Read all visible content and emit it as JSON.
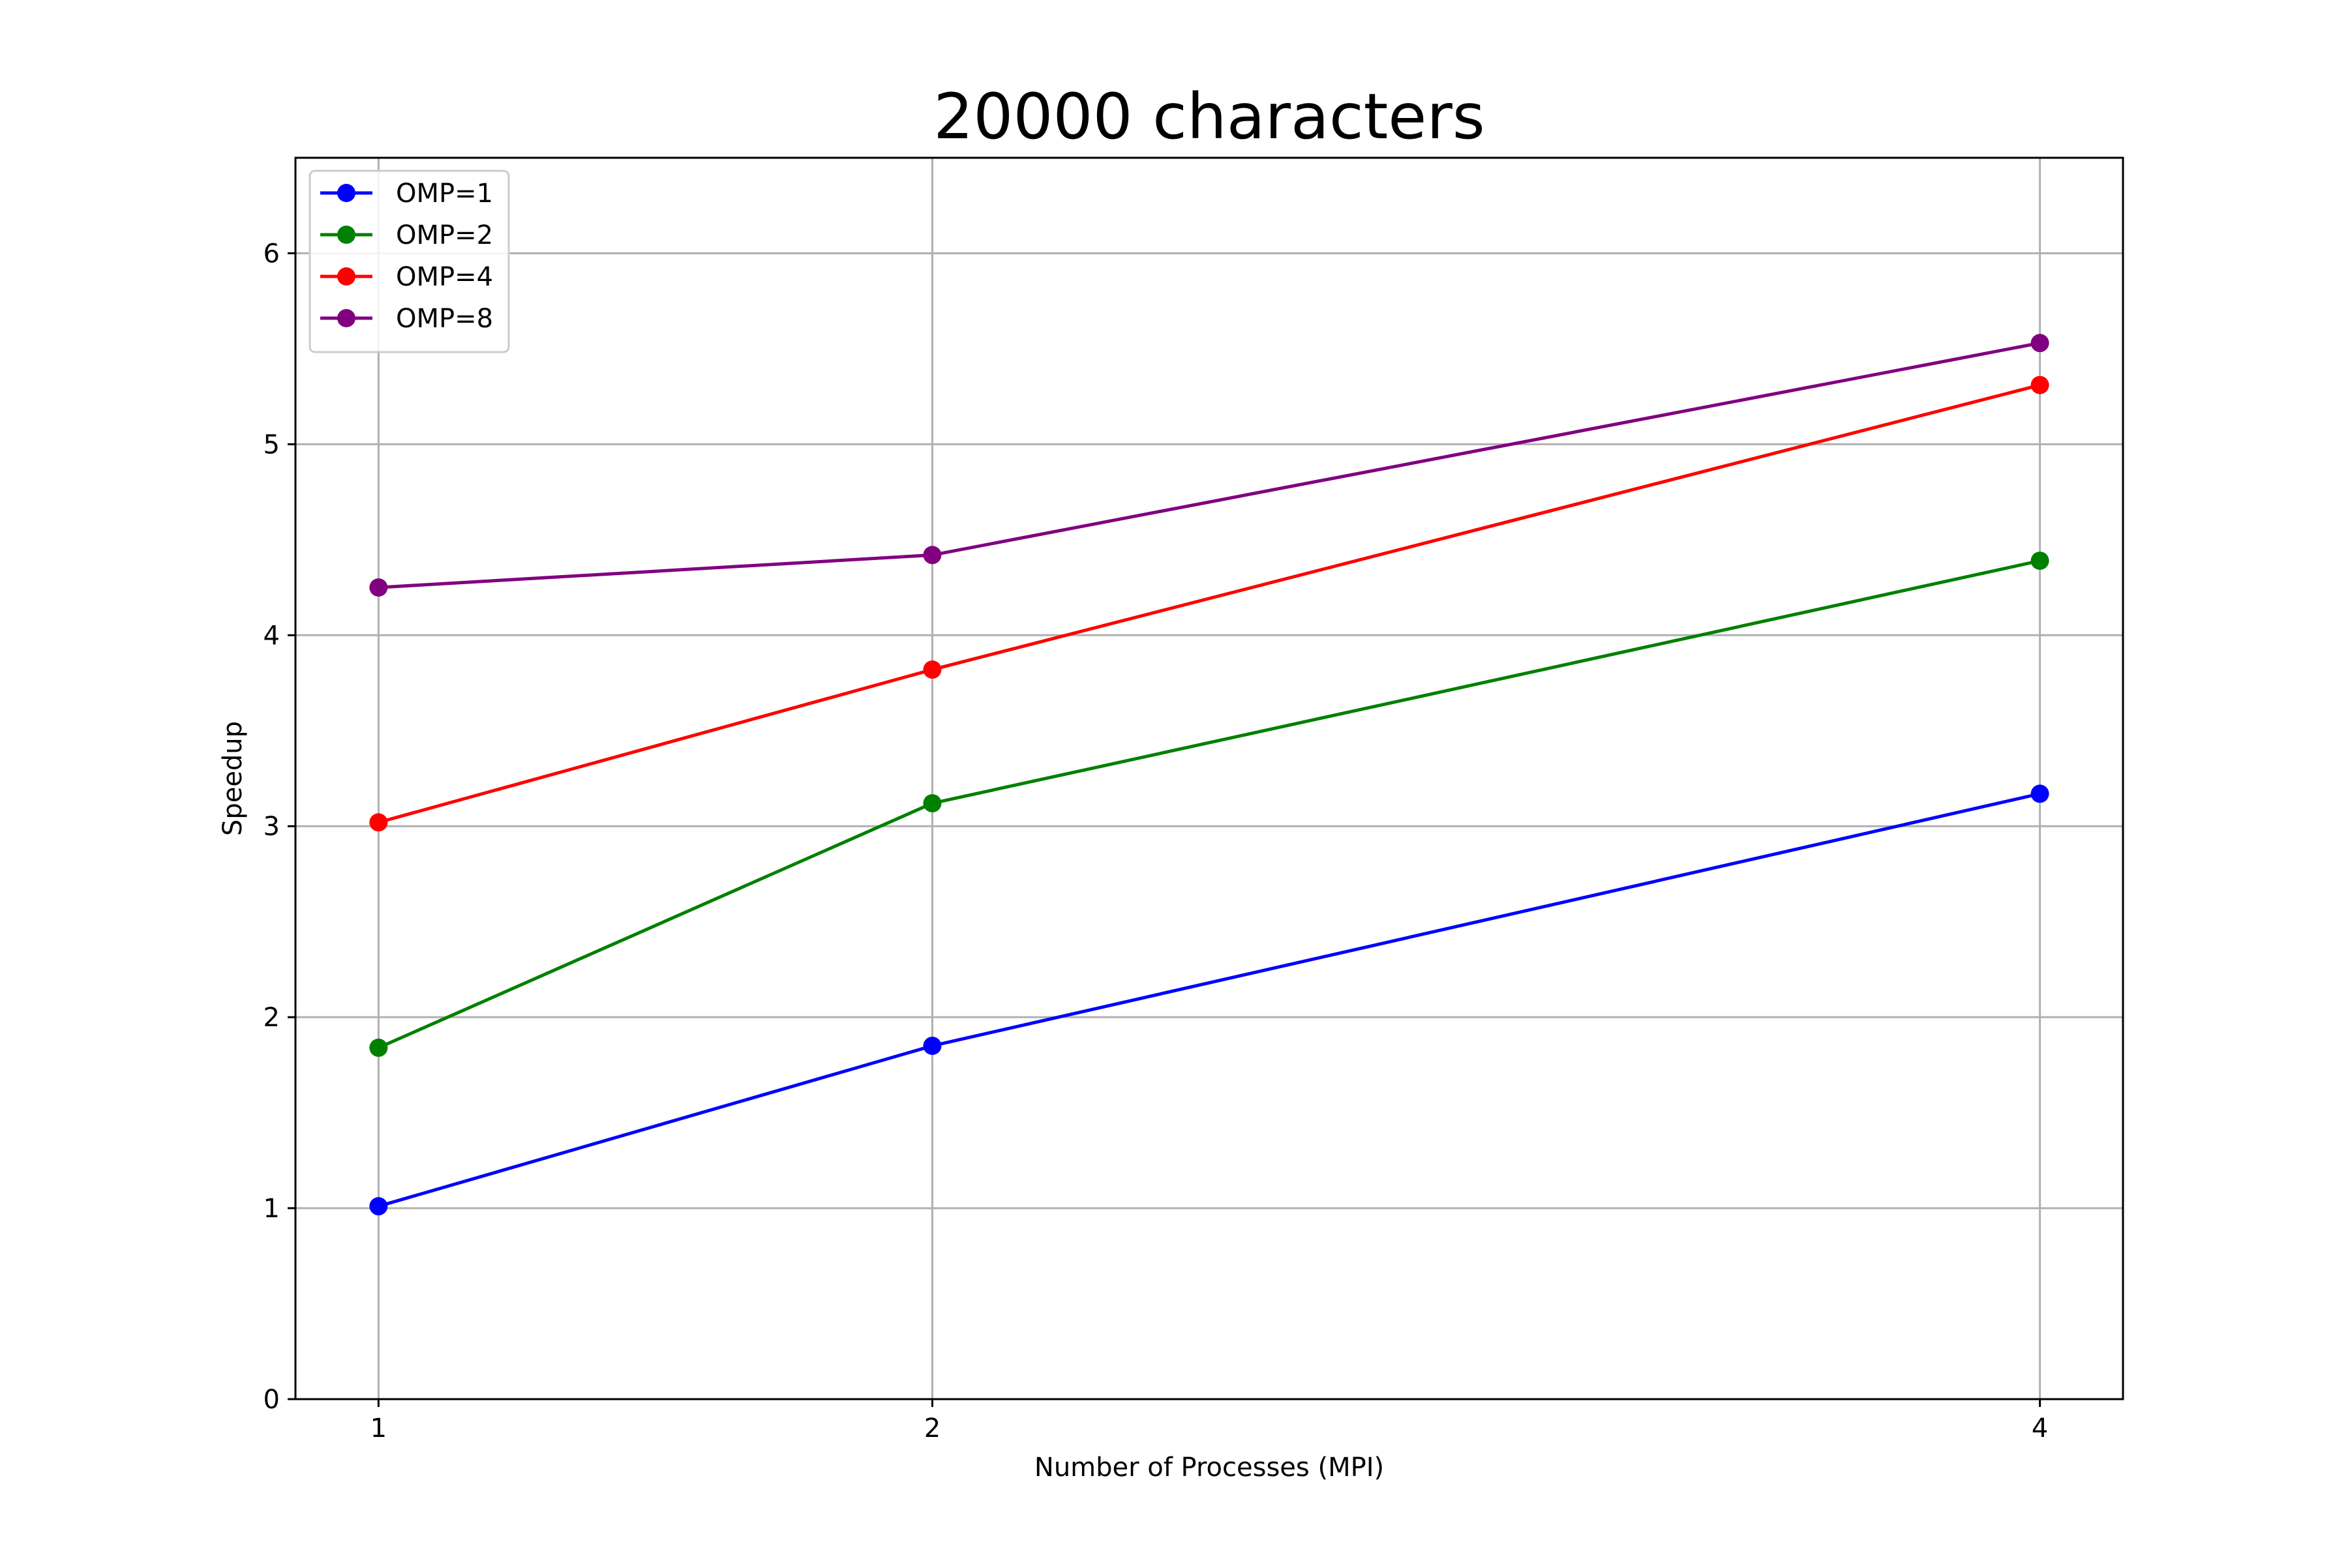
{
  "chart_data": {
    "type": "line",
    "title": "20000 characters",
    "xlabel": "Number of Processes (MPI)",
    "ylabel": "Speedup",
    "x": [
      1,
      2,
      4
    ],
    "xticks": [
      "1",
      "2",
      "4"
    ],
    "yticks": [
      "0",
      "1",
      "2",
      "3",
      "4",
      "5",
      "6"
    ],
    "xlim": [
      0.85,
      4.15
    ],
    "ylim": [
      0,
      6.5
    ],
    "grid": true,
    "legend_position": "top-left",
    "series": [
      {
        "name": "OMP=1",
        "color": "#0000ff",
        "values": [
          1.01,
          1.85,
          3.17
        ]
      },
      {
        "name": "OMP=2",
        "color": "#008000",
        "values": [
          1.84,
          3.12,
          4.39
        ]
      },
      {
        "name": "OMP=4",
        "color": "#ff0000",
        "values": [
          3.02,
          3.82,
          5.31
        ]
      },
      {
        "name": "OMP=8",
        "color": "#800080",
        "values": [
          4.25,
          4.42,
          5.53
        ]
      }
    ]
  }
}
